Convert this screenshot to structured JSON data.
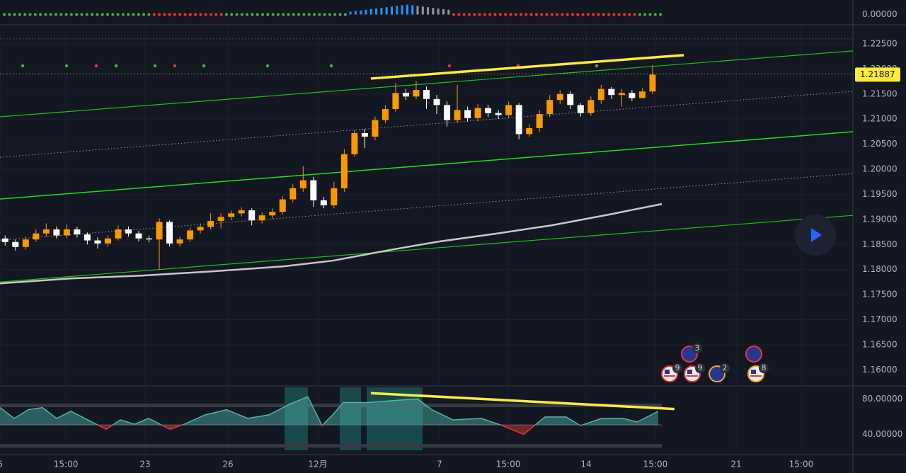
{
  "chart_data": [
    {
      "type": "indicator",
      "yticks": [
        {
          "value": 0,
          "label": "0.00000"
        }
      ]
    },
    {
      "type": "candlestick",
      "xlim": [
        -0.5,
        82.5
      ],
      "ylim": [
        1.1568,
        1.2288
      ],
      "up_color": "#ff9800",
      "down_color": "#ffffff",
      "grid": true,
      "yticks": [
        {
          "value": 1.225,
          "label": "1.22500"
        },
        {
          "value": 1.22,
          "label": "1.22000"
        },
        {
          "value": 1.215,
          "label": "1.21500"
        },
        {
          "value": 1.21,
          "label": "1.21000"
        },
        {
          "value": 1.205,
          "label": "1.20500"
        },
        {
          "value": 1.2,
          "label": "1.20000"
        },
        {
          "value": 1.195,
          "label": "1.19500"
        },
        {
          "value": 1.19,
          "label": "1.19000"
        },
        {
          "value": 1.185,
          "label": "1.18500"
        },
        {
          "value": 1.18,
          "label": "1.18000"
        },
        {
          "value": 1.175,
          "label": "1.17500"
        },
        {
          "value": 1.17,
          "label": "1.17000"
        },
        {
          "value": 1.165,
          "label": "1.16500"
        },
        {
          "value": 1.16,
          "label": "1.16000"
        }
      ],
      "candles": [
        [
          1.1862,
          1.1868,
          1.1848,
          1.1855
        ],
        [
          1.1855,
          1.186,
          1.1838,
          1.1845
        ],
        [
          1.1845,
          1.1866,
          1.184,
          1.186
        ],
        [
          1.186,
          1.188,
          1.1855,
          1.1872
        ],
        [
          1.1872,
          1.1892,
          1.1866,
          1.188
        ],
        [
          1.188,
          1.1886,
          1.1862,
          1.1868
        ],
        [
          1.1868,
          1.189,
          1.1862,
          1.188
        ],
        [
          1.188,
          1.1885,
          1.1864,
          1.187
        ],
        [
          1.187,
          1.1874,
          1.185,
          1.1858
        ],
        [
          1.1858,
          1.1864,
          1.1842,
          1.1852
        ],
        [
          1.1852,
          1.1868,
          1.1846,
          1.1862
        ],
        [
          1.1862,
          1.1888,
          1.1858,
          1.188
        ],
        [
          1.188,
          1.1886,
          1.1866,
          1.1872
        ],
        [
          1.1872,
          1.1877,
          1.1856,
          1.1862
        ],
        [
          1.1862,
          1.1868,
          1.1854,
          1.186
        ],
        [
          1.186,
          1.1902,
          1.18,
          1.1895
        ],
        [
          1.1895,
          1.1898,
          1.1846,
          1.1852
        ],
        [
          1.1852,
          1.1866,
          1.1846,
          1.186
        ],
        [
          1.186,
          1.1884,
          1.1855,
          1.1878
        ],
        [
          1.1878,
          1.1892,
          1.1872,
          1.1885
        ],
        [
          1.1885,
          1.1912,
          1.188,
          1.1897
        ],
        [
          1.1897,
          1.1912,
          1.1882,
          1.1905
        ],
        [
          1.1905,
          1.1918,
          1.1898,
          1.1912
        ],
        [
          1.1912,
          1.1924,
          1.1906,
          1.1918
        ],
        [
          1.1918,
          1.1922,
          1.1888,
          1.1898
        ],
        [
          1.1898,
          1.1914,
          1.1892,
          1.1908
        ],
        [
          1.1908,
          1.1922,
          1.1902,
          1.1915
        ],
        [
          1.1915,
          1.1946,
          1.191,
          1.194
        ],
        [
          1.194,
          1.197,
          1.1934,
          1.1962
        ],
        [
          1.1962,
          1.2006,
          1.1955,
          1.1978
        ],
        [
          1.1978,
          1.1985,
          1.1925,
          1.1938
        ],
        [
          1.1938,
          1.1945,
          1.1922,
          1.1928
        ],
        [
          1.1928,
          1.1975,
          1.1922,
          1.1962
        ],
        [
          1.1962,
          1.204,
          1.1955,
          1.203
        ],
        [
          1.203,
          1.2078,
          1.2025,
          1.2072
        ],
        [
          1.2072,
          1.208,
          1.2042,
          1.2065
        ],
        [
          1.2065,
          1.2105,
          1.2058,
          1.2098
        ],
        [
          1.2098,
          1.2128,
          1.2092,
          1.212
        ],
        [
          1.212,
          1.2172,
          1.2115,
          1.2152
        ],
        [
          1.2152,
          1.216,
          1.2138,
          1.2145
        ],
        [
          1.2145,
          1.2175,
          1.214,
          1.2158
        ],
        [
          1.2158,
          1.2165,
          1.212,
          1.214
        ],
        [
          1.214,
          1.2148,
          1.211,
          1.2128
        ],
        [
          1.2128,
          1.2135,
          1.2085,
          1.2098
        ],
        [
          1.2098,
          1.2168,
          1.2092,
          1.2118
        ],
        [
          1.2118,
          1.2125,
          1.2095,
          1.2102
        ],
        [
          1.2102,
          1.213,
          1.2096,
          1.2122
        ],
        [
          1.2122,
          1.2128,
          1.2104,
          1.2112
        ],
        [
          1.2112,
          1.2118,
          1.21,
          1.2108
        ],
        [
          1.2108,
          1.2135,
          1.2102,
          1.2128
        ],
        [
          1.2128,
          1.2132,
          1.206,
          1.207
        ],
        [
          1.207,
          1.209,
          1.2065,
          1.2082
        ],
        [
          1.2082,
          1.2118,
          1.2075,
          1.211
        ],
        [
          1.211,
          1.2148,
          1.2104,
          1.2138
        ],
        [
          1.2138,
          1.2158,
          1.213,
          1.215
        ],
        [
          1.215,
          1.2155,
          1.212,
          1.2128
        ],
        [
          1.2128,
          1.2132,
          1.2105,
          1.2112
        ],
        [
          1.2112,
          1.2145,
          1.2106,
          1.2138
        ],
        [
          1.2138,
          1.2168,
          1.213,
          1.216
        ],
        [
          1.216,
          1.2164,
          1.214,
          1.2148
        ],
        [
          1.2148,
          1.216,
          1.2125,
          1.2152
        ],
        [
          1.2152,
          1.2158,
          1.2136,
          1.2142
        ],
        [
          1.2142,
          1.2162,
          1.2148,
          1.2155
        ],
        [
          1.2155,
          1.2208,
          1.215,
          1.21887
        ]
      ],
      "lines": [
        {
          "color": "#1fbf1f",
          "style": "solid",
          "width": 1.2,
          "x": [
            -0.5,
            82.5
          ],
          "y": [
            1.21045,
            1.22359
          ]
        },
        {
          "color": "#1fdf1f",
          "style": "solid",
          "width": 1.5,
          "x": [
            -0.5,
            82.5
          ],
          "y": [
            1.19405,
            1.20748
          ]
        },
        {
          "color": "#1fbf1f",
          "style": "solid",
          "width": 1.2,
          "x": [
            -0.5,
            82.5
          ],
          "y": [
            1.17752,
            1.1908
          ]
        },
        {
          "color": "#9598a1",
          "style": "dotted",
          "width": 1,
          "x": [
            -0.5,
            82.5
          ],
          "y": [
            1.20239,
            1.21553
          ]
        },
        {
          "color": "#9598a1",
          "style": "dotted",
          "width": 1,
          "x": [
            -0.5,
            82.5
          ],
          "y": [
            1.18586,
            1.19914
          ]
        },
        {
          "color": "#5d606b",
          "style": "dotted",
          "width": 1,
          "x": [
            -0.5,
            82.5
          ],
          "y": [
            1.22599,
            1.22599
          ]
        },
        {
          "color": "#9598a1",
          "style": "dotted",
          "width": 1,
          "x": [
            -0.5,
            82.5
          ],
          "y": [
            1.219,
            1.219
          ]
        },
        {
          "color": "#c8c8c8",
          "style": "solid",
          "width": 2.5,
          "x": [
            -0.5,
            6.39,
            13.27,
            20.16,
            27.05,
            31.87,
            37.38,
            42.2,
            47.71,
            53.22,
            58.73,
            63.9
          ],
          "y": [
            1.17724,
            1.17823,
            1.17879,
            1.17964,
            1.18063,
            1.18176,
            1.18388,
            1.18558,
            1.18713,
            1.18883,
            1.19095,
            1.19307
          ]
        },
        {
          "color": "#ffeb3b",
          "style": "solid",
          "width": 3.5,
          "x": [
            35.59,
            66.04
          ],
          "y": [
            1.21808,
            1.22274
          ]
        }
      ],
      "event_labels": [
        "3",
        "9",
        "9",
        "2",
        "8"
      ]
    },
    {
      "type": "oscillator",
      "xlim": [
        -0.5,
        82.5
      ],
      "ylim": [
        17.14,
        93.06
      ],
      "yticks": [
        {
          "value": 80,
          "label": "80.00000"
        },
        {
          "value": 40,
          "label": "40.00000"
        }
      ],
      "xticks": [
        {
          "value": -0.5,
          "label": "6"
        },
        {
          "value": 5.91,
          "label": "15:00"
        },
        {
          "value": 13.62,
          "label": "23"
        },
        {
          "value": 21.68,
          "label": "26"
        },
        {
          "value": 30.43,
          "label": "12月"
        },
        {
          "value": 42.27,
          "label": "7"
        },
        {
          "value": 48.96,
          "label": "15:00"
        },
        {
          "value": 56.53,
          "label": "14"
        },
        {
          "value": 63.28,
          "label": "15:00"
        },
        {
          "value": 71.14,
          "label": "21"
        },
        {
          "value": 77.47,
          "label": "15:00"
        }
      ],
      "levels": [
        72.7,
        50.6,
        27.0
      ],
      "above_color": "#4db6ac",
      "below_color": "#e53935",
      "zones": [
        [
          27.19,
          29.46
        ],
        [
          32.56,
          34.63
        ],
        [
          35.18,
          40.62
        ]
      ],
      "x": [
        -0.5,
        0.88,
        2.26,
        3.63,
        5.01,
        6.39,
        8.45,
        9.83,
        11.21,
        12.59,
        13.96,
        16.03,
        17.41,
        19.48,
        21.54,
        23.61,
        25.67,
        27.74,
        29.46,
        30.84,
        31.87,
        32.91,
        35.32,
        38.07,
        40.14,
        41.52,
        43.58,
        46.34,
        48.4,
        50.47,
        52.54,
        54.6,
        55.98,
        58.05,
        60.11,
        61.49,
        63.56
      ],
      "values": [
        70.2,
        58.0,
        67.8,
        70.2,
        58.0,
        66.1,
        53.9,
        45.7,
        56.3,
        51.4,
        58.0,
        45.7,
        51.4,
        62.0,
        67.8,
        58.0,
        62.0,
        74.3,
        82.4,
        49.8,
        62.0,
        75.9,
        75.9,
        78.4,
        80.0,
        67.8,
        56.3,
        58.0,
        49.8,
        40.0,
        59.6,
        59.6,
        49.8,
        58.0,
        58.0,
        53.9,
        66.1
      ],
      "trend_line": {
        "color": "#ffeb3b",
        "x": [
          35.59,
          65.13
        ],
        "y": [
          86.5,
          68.6
        ]
      }
    }
  ]
}
